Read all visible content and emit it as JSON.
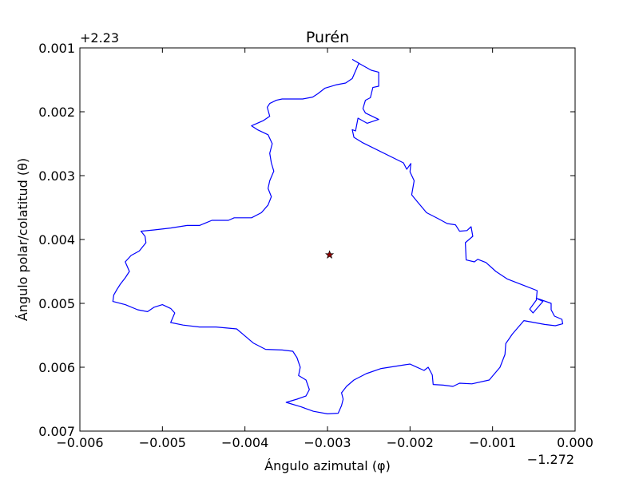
{
  "chart_data": {
    "type": "line",
    "title": "Purén",
    "xlabel": "Ángulo azimutal (φ)",
    "ylabel": "Ángulo polar/colatitud (θ)",
    "x_offset_label": "−1.272",
    "y_offset_label": "+2.23",
    "xlim": [
      -0.006,
      0.0
    ],
    "ylim": [
      0.007,
      0.001
    ],
    "y_inverted": true,
    "grid": false,
    "x_ticks": [
      {
        "value": -0.006,
        "label": "−0.006"
      },
      {
        "value": -0.005,
        "label": "−0.005"
      },
      {
        "value": -0.004,
        "label": "−0.004"
      },
      {
        "value": -0.003,
        "label": "−0.003"
      },
      {
        "value": -0.002,
        "label": "−0.002"
      },
      {
        "value": -0.001,
        "label": "−0.001"
      },
      {
        "value": 0.0,
        "label": "0.000"
      }
    ],
    "y_ticks": [
      {
        "value": 0.001,
        "label": "0.001"
      },
      {
        "value": 0.002,
        "label": "0.002"
      },
      {
        "value": 0.003,
        "label": "0.003"
      },
      {
        "value": 0.004,
        "label": "0.004"
      },
      {
        "value": 0.005,
        "label": "0.005"
      },
      {
        "value": 0.006,
        "label": "0.006"
      },
      {
        "value": 0.007,
        "label": "0.007"
      }
    ],
    "series": [
      {
        "style": "line",
        "color": "#0000ff",
        "points": [
          [
            -0.0027,
            0.00118
          ],
          [
            -0.00258,
            0.00127
          ],
          [
            -0.00247,
            0.00135
          ],
          [
            -0.00238,
            0.00138
          ],
          [
            -0.00238,
            0.0016
          ],
          [
            -0.00245,
            0.00162
          ],
          [
            -0.00248,
            0.00178
          ],
          [
            -0.00254,
            0.00182
          ],
          [
            -0.00257,
            0.00195
          ],
          [
            -0.00254,
            0.00202
          ],
          [
            -0.00238,
            0.00212
          ],
          [
            -0.00252,
            0.00218
          ],
          [
            -0.00263,
            0.0021
          ],
          [
            -0.00266,
            0.0023
          ],
          [
            -0.0027,
            0.00228
          ],
          [
            -0.00268,
            0.0024
          ],
          [
            -0.00258,
            0.00248
          ],
          [
            -0.00208,
            0.0028
          ],
          [
            -0.00204,
            0.0029
          ],
          [
            -0.00199,
            0.00281
          ],
          [
            -0.002,
            0.00294
          ],
          [
            -0.00195,
            0.00308
          ],
          [
            -0.00198,
            0.0033
          ],
          [
            -0.00193,
            0.00338
          ],
          [
            -0.0018,
            0.00358
          ],
          [
            -0.00165,
            0.00368
          ],
          [
            -0.00155,
            0.00375
          ],
          [
            -0.00145,
            0.00377
          ],
          [
            -0.0014,
            0.00387
          ],
          [
            -0.00131,
            0.00386
          ],
          [
            -0.00126,
            0.0038
          ],
          [
            -0.00124,
            0.00395
          ],
          [
            -0.00133,
            0.00405
          ],
          [
            -0.00132,
            0.00432
          ],
          [
            -0.00122,
            0.00435
          ],
          [
            -0.00118,
            0.00431
          ],
          [
            -0.00108,
            0.00436
          ],
          [
            -0.00096,
            0.0045
          ],
          [
            -0.00082,
            0.00462
          ],
          [
            -0.00062,
            0.00472
          ],
          [
            -0.00046,
            0.0048
          ],
          [
            -0.00047,
            0.00495
          ],
          [
            -0.00055,
            0.00509
          ],
          [
            -0.00051,
            0.00515
          ],
          [
            -0.00039,
            0.00497
          ],
          [
            -0.00047,
            0.00492
          ],
          [
            -0.00042,
            0.00494
          ],
          [
            -0.00029,
            0.005
          ],
          [
            -0.00029,
            0.0051
          ],
          [
            -0.00025,
            0.0052
          ],
          [
            -0.00016,
            0.00525
          ],
          [
            -0.00015,
            0.00532
          ],
          [
            -0.00024,
            0.00535
          ],
          [
            -0.00037,
            0.00533
          ],
          [
            -0.00062,
            0.00527
          ],
          [
            -0.00076,
            0.00548
          ],
          [
            -0.00084,
            0.00563
          ],
          [
            -0.00085,
            0.0058
          ],
          [
            -0.00091,
            0.006
          ],
          [
            -0.00104,
            0.0062
          ],
          [
            -0.00125,
            0.00626
          ],
          [
            -0.0014,
            0.00625
          ],
          [
            -0.00148,
            0.0063
          ],
          [
            -0.0016,
            0.00628
          ],
          [
            -0.00172,
            0.00627
          ],
          [
            -0.00173,
            0.00612
          ],
          [
            -0.00178,
            0.006
          ],
          [
            -0.00183,
            0.00605
          ],
          [
            -0.00195,
            0.00598
          ],
          [
            -0.002,
            0.00595
          ],
          [
            -0.00215,
            0.00598
          ],
          [
            -0.00235,
            0.00602
          ],
          [
            -0.00253,
            0.0061
          ],
          [
            -0.00268,
            0.0062
          ],
          [
            -0.00277,
            0.0063
          ],
          [
            -0.00283,
            0.0064
          ],
          [
            -0.00281,
            0.0065
          ],
          [
            -0.00283,
            0.0066
          ],
          [
            -0.00287,
            0.00672
          ],
          [
            -0.003,
            0.00673
          ],
          [
            -0.00317,
            0.00669
          ],
          [
            -0.00332,
            0.00662
          ],
          [
            -0.0035,
            0.00655
          ],
          [
            -0.00337,
            0.0065
          ],
          [
            -0.00326,
            0.00645
          ],
          [
            -0.00322,
            0.00635
          ],
          [
            -0.00326,
            0.0062
          ],
          [
            -0.00335,
            0.00613
          ],
          [
            -0.00333,
            0.006
          ],
          [
            -0.00337,
            0.00585
          ],
          [
            -0.00342,
            0.00575
          ],
          [
            -0.00355,
            0.00573
          ],
          [
            -0.00375,
            0.00572
          ],
          [
            -0.0039,
            0.00562
          ],
          [
            -0.004,
            0.00551
          ],
          [
            -0.0041,
            0.0054
          ],
          [
            -0.00435,
            0.00537
          ],
          [
            -0.00455,
            0.00537
          ],
          [
            -0.00475,
            0.00534
          ],
          [
            -0.0049,
            0.0053
          ],
          [
            -0.00485,
            0.00515
          ],
          [
            -0.0049,
            0.00508
          ],
          [
            -0.005,
            0.00502
          ],
          [
            -0.0051,
            0.00506
          ],
          [
            -0.00518,
            0.00513
          ],
          [
            -0.0053,
            0.0051
          ],
          [
            -0.00545,
            0.00502
          ],
          [
            -0.0056,
            0.00497
          ],
          [
            -0.00559,
            0.00487
          ],
          [
            -0.00555,
            0.00478
          ],
          [
            -0.00551,
            0.0047
          ],
          [
            -0.00545,
            0.0046
          ],
          [
            -0.0054,
            0.0045
          ],
          [
            -0.00545,
            0.00435
          ],
          [
            -0.00538,
            0.00425
          ],
          [
            -0.00528,
            0.00418
          ],
          [
            -0.0052,
            0.00405
          ],
          [
            -0.00521,
            0.00395
          ],
          [
            -0.00526,
            0.00387
          ],
          [
            -0.0051,
            0.00385
          ],
          [
            -0.0049,
            0.00382
          ],
          [
            -0.0047,
            0.00378
          ],
          [
            -0.00455,
            0.00378
          ],
          [
            -0.0044,
            0.0037
          ],
          [
            -0.0042,
            0.0037
          ],
          [
            -0.00413,
            0.00366
          ],
          [
            -0.00392,
            0.00366
          ],
          [
            -0.0038,
            0.00358
          ],
          [
            -0.00372,
            0.00346
          ],
          [
            -0.00368,
            0.00333
          ],
          [
            -0.00372,
            0.0032
          ],
          [
            -0.0037,
            0.00308
          ],
          [
            -0.00365,
            0.00293
          ],
          [
            -0.00368,
            0.0028
          ],
          [
            -0.0037,
            0.00265
          ],
          [
            -0.00367,
            0.0025
          ],
          [
            -0.00372,
            0.00236
          ],
          [
            -0.00385,
            0.00228
          ],
          [
            -0.00392,
            0.00222
          ],
          [
            -0.00378,
            0.00214
          ],
          [
            -0.0037,
            0.00207
          ],
          [
            -0.00373,
            0.00193
          ],
          [
            -0.0037,
            0.00187
          ],
          [
            -0.00362,
            0.00182
          ],
          [
            -0.00355,
            0.0018
          ],
          [
            -0.00343,
            0.0018
          ],
          [
            -0.0033,
            0.0018
          ],
          [
            -0.00318,
            0.00177
          ],
          [
            -0.00312,
            0.00172
          ],
          [
            -0.00303,
            0.00163
          ],
          [
            -0.0029,
            0.00158
          ],
          [
            -0.00278,
            0.00155
          ],
          [
            -0.0027,
            0.00148
          ],
          [
            -0.00265,
            0.00133
          ],
          [
            -0.00262,
            0.00124
          ],
          [
            -0.0027,
            0.00118
          ]
        ]
      },
      {
        "style": "star-marker",
        "color": "#8b0000",
        "points": [
          [
            -0.002975,
            0.00424
          ]
        ]
      }
    ]
  }
}
